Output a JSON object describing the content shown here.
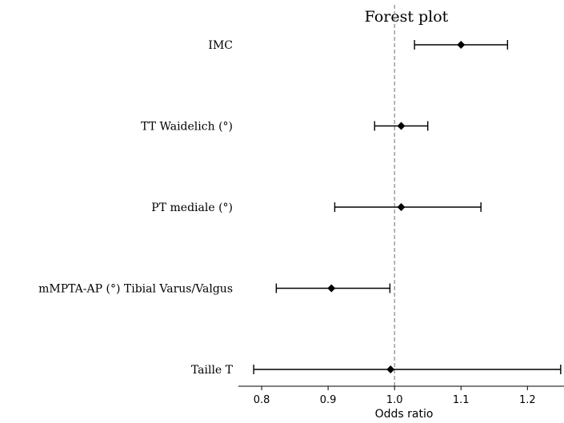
{
  "chart_data": {
    "type": "forest",
    "title": "Forest plot",
    "xlabel": "Odds ratio",
    "ylabel": "",
    "xlim": [
      0.765,
      1.255
    ],
    "x_ticks": [
      "0.8",
      "0.9",
      "1.0",
      "1.1",
      "1.2"
    ],
    "reference_line": 1.0,
    "grid": false,
    "rows": [
      {
        "label": "IMC",
        "estimate": 1.1,
        "lower": 1.03,
        "upper": 1.17
      },
      {
        "label": "TT Waidelich (°)",
        "estimate": 1.01,
        "lower": 0.97,
        "upper": 1.05
      },
      {
        "label": "PT mediale (°)",
        "estimate": 1.01,
        "lower": 0.91,
        "upper": 1.13
      },
      {
        "label": "mMPTA-AP (°) Tibial Varus/Valgus",
        "estimate": 0.905,
        "lower": 0.822,
        "upper": 0.993
      },
      {
        "label": "Taille T",
        "estimate": 0.994,
        "lower": 0.788,
        "upper": 1.25
      }
    ],
    "colors": {
      "marker": "#000000",
      "interval": "#000000",
      "reference_line": "#888888",
      "axis": "#000000"
    }
  }
}
